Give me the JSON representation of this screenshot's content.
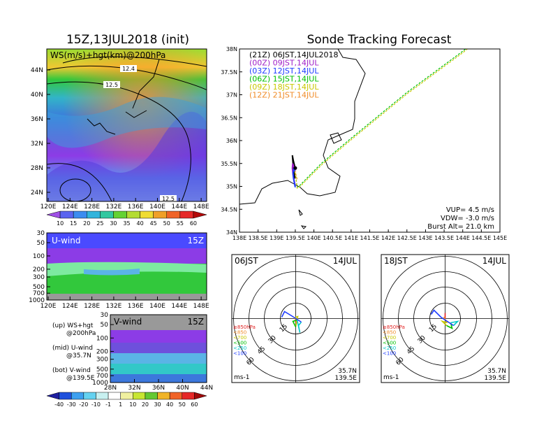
{
  "wind_map": {
    "title": "15Z,13JUL2018 (init)",
    "label": "WS(m/s)+hgt(km)@200hPa",
    "lat_ticks": [
      "44N",
      "40N",
      "36N",
      "32N",
      "28N",
      "24N"
    ],
    "lon_ticks": [
      "120E",
      "124E",
      "128E",
      "132E",
      "136E",
      "140E",
      "144E",
      "148E"
    ],
    "contour_labels": [
      "12.4",
      "12.5",
      "12.5"
    ],
    "colorbar": [
      "10",
      "15",
      "20",
      "25",
      "30",
      "35",
      "40",
      "45",
      "50",
      "55",
      "60"
    ]
  },
  "u_panel": {
    "label": "U-wind",
    "time": "15Z",
    "p_ticks": [
      "30",
      "50",
      "100",
      "200",
      "300",
      "500",
      "700",
      "1000"
    ],
    "lon_ticks": [
      "120E",
      "124E",
      "128E",
      "132E",
      "136E",
      "140E",
      "144E",
      "148E"
    ]
  },
  "v_panel": {
    "label": "V-wind",
    "time": "15Z",
    "p_ticks": [
      "30",
      "50",
      "100",
      "200",
      "300",
      "500",
      "700",
      "1000"
    ],
    "lat_ticks": [
      "28N",
      "32N",
      "36N",
      "40N",
      "44N"
    ]
  },
  "notes": {
    "up": "(up) WS+hgt",
    "up2": "@200hPa",
    "mid": "(mid) U-wind",
    "mid2": "@35.7N",
    "bot": "(bot) V-wind",
    "bot2": "@139.5E"
  },
  "bottom_colorbar": [
    "-40",
    "-30",
    "-20",
    "-10",
    "-1",
    "1",
    "10",
    "20",
    "30",
    "40",
    "50",
    "60"
  ],
  "track": {
    "title": "Sonde Tracking Forecast",
    "legend": [
      {
        "label": "(21Z) 06JST,14JUL2018",
        "color": "#000000"
      },
      {
        "label": "(00Z) 09JST,14JUL",
        "color": "#a020c8"
      },
      {
        "label": "(03Z) 12JST,14JUL",
        "color": "#1e3cff"
      },
      {
        "label": "(06Z) 15JST,14JUL",
        "color": "#00c000"
      },
      {
        "label": "(09Z) 18JST,14JUL",
        "color": "#c8c800"
      },
      {
        "label": "(12Z) 21JST,14JUL",
        "color": "#f08c28"
      }
    ],
    "lat_ticks": [
      "38N",
      "37.5N",
      "37N",
      "36.5N",
      "36N",
      "35.5N",
      "35N",
      "34.5N",
      "34N"
    ],
    "lon_ticks": [
      "138E",
      "138.5E",
      "139E",
      "139.5E",
      "140E",
      "140.5E",
      "141E",
      "141.5E",
      "142E",
      "142.5E",
      "143E",
      "143.5E",
      "144E",
      "144.5E",
      "145E"
    ],
    "vup": "VUP= 4.5 m/s",
    "vdw": "VDW= -3.0 m/s",
    "burst": "Burst Alt= 21.0 km"
  },
  "hodo_left": {
    "time": "06JST",
    "date": "14JUL"
  },
  "hodo_right": {
    "time": "18JST",
    "date": "14JUL"
  },
  "hodo_common": {
    "rings": [
      "15",
      "30",
      "45",
      "60"
    ],
    "levels": [
      "≥850hPa",
      "<850",
      "<700",
      "<500",
      "<250",
      "<100"
    ],
    "level_colors": [
      "#e01e1e",
      "#f08c28",
      "#c8c800",
      "#00c000",
      "#00c8c8",
      "#1e3cff"
    ],
    "unit": "ms-1",
    "lat": "35.7N",
    "lon": "139.5E"
  },
  "chart_data": [
    {
      "type": "heatmap",
      "title": "15Z,13JUL2018 (init)",
      "variable": "WS(m/s)+hgt(km)@200hPa",
      "xlim": [
        120,
        149
      ],
      "ylim": [
        22,
        47
      ],
      "colorbar_values": [
        10,
        15,
        20,
        25,
        30,
        35,
        40,
        45,
        50,
        55,
        60
      ],
      "contours": [
        12.4,
        12.5
      ]
    },
    {
      "type": "heatmap",
      "title": "U-wind",
      "xlim": [
        120,
        149
      ],
      "ylim": [
        1000,
        30
      ],
      "y_scale": "log"
    },
    {
      "type": "heatmap",
      "title": "V-wind",
      "xlim": [
        28,
        44
      ],
      "ylim": [
        1000,
        30
      ],
      "y_scale": "log",
      "colorbar_values": [
        -40,
        -30,
        -20,
        -10,
        -1,
        1,
        10,
        20,
        30,
        40,
        50,
        60
      ]
    },
    {
      "type": "line",
      "title": "Sonde Tracking Forecast",
      "xlim": [
        138,
        145
      ],
      "ylim": [
        34,
        38
      ],
      "launch": [
        139.5,
        35.4
      ],
      "series": [
        {
          "name": "(21Z) 06JST,14JUL2018",
          "x": [
            139.5,
            139.48,
            139.45,
            139.42,
            139.44,
            139.46,
            139.49
          ],
          "y": [
            35.37,
            35.45,
            35.55,
            35.68,
            35.5,
            35.33,
            35.17
          ]
        },
        {
          "name": "(00Z) 09JST,14JUL",
          "x": [
            139.5,
            139.46,
            139.43,
            139.42,
            139.44,
            139.47,
            139.49
          ],
          "y": [
            35.35,
            35.42,
            35.5,
            35.4,
            35.25,
            35.12,
            35.05
          ]
        },
        {
          "name": "(03Z) 12JST,14JUL",
          "x": [
            139.5,
            139.46,
            139.44,
            139.45,
            139.48,
            139.5
          ],
          "y": [
            35.33,
            35.38,
            35.3,
            35.18,
            35.05,
            34.98
          ]
        },
        {
          "name": "(06Z) 15JST,14JUL",
          "x": [
            139.5,
            139.55,
            139.62,
            140.2,
            141.0,
            142.5,
            144.0,
            145.0
          ],
          "y": [
            35.3,
            34.98,
            35.02,
            35.5,
            36.05,
            37.05,
            37.95,
            38.6
          ]
        },
        {
          "name": "(09Z) 18JST,14JUL",
          "x": [
            139.5,
            139.55,
            139.63,
            140.22,
            141.02,
            142.52,
            144.02,
            145.0
          ],
          "y": [
            35.3,
            34.96,
            35.0,
            35.48,
            36.03,
            37.03,
            37.93,
            38.6
          ]
        },
        {
          "name": "(12Z) 21JST,14JUL",
          "x": [
            139.5,
            139.52,
            139.55
          ],
          "y": [
            35.35,
            35.25,
            35.15
          ]
        }
      ]
    }
  ]
}
